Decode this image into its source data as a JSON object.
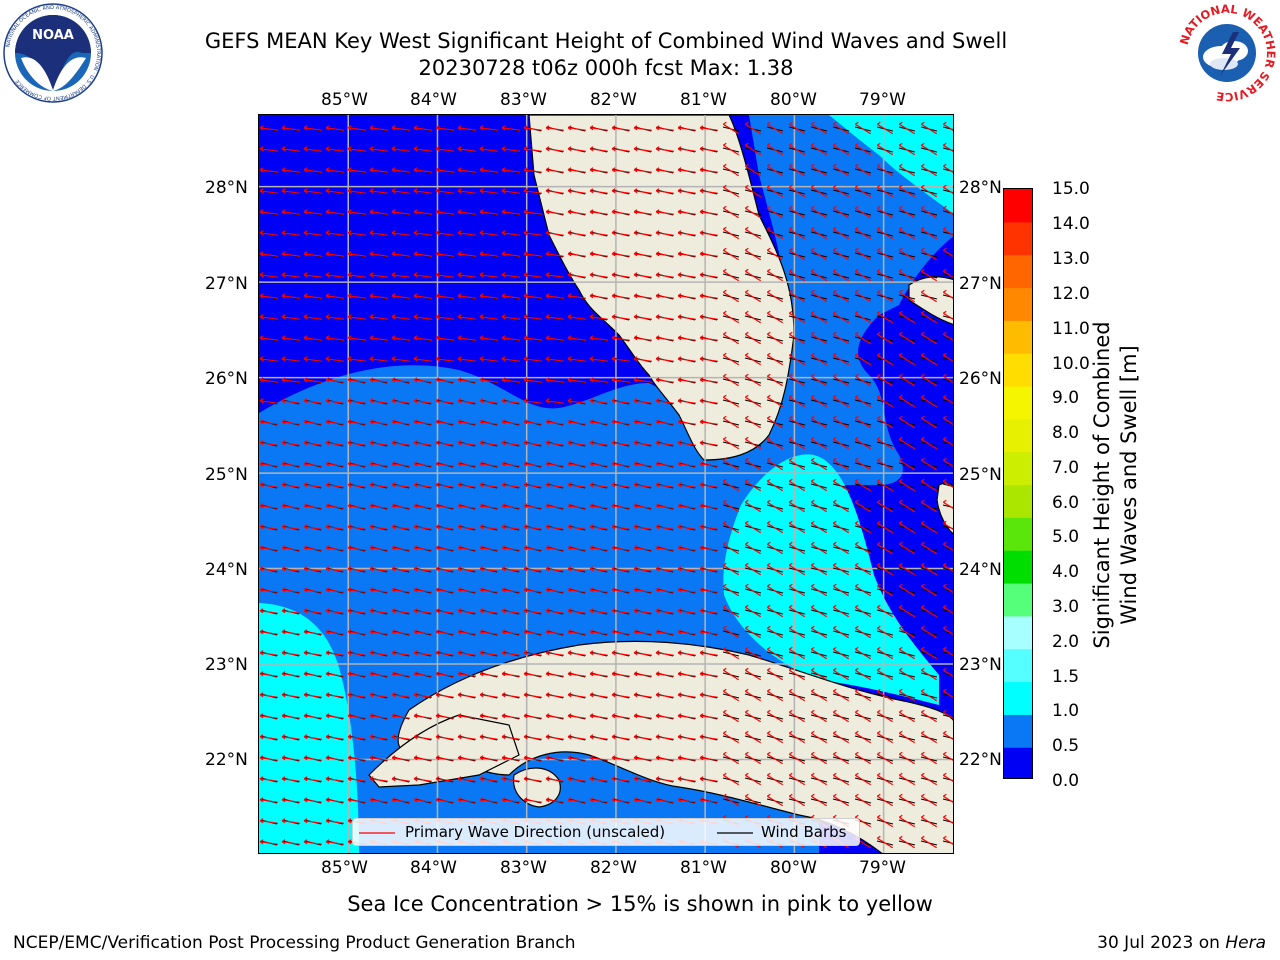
{
  "header": {
    "title_line1": "GEFS MEAN Key West Significant Height of Combined Wind Waves and Swell",
    "title_line2": "20230728 t06z 000h fcst   Max: 1.38"
  },
  "logos": {
    "noaa_text": "NOAA",
    "noaa_ring_text": "NATIONAL OCEANIC AND ATMOSPHERIC ADMINISTRATION · U.S. DEPARTMENT OF COMMERCE",
    "nws_ring_text": "NATIONAL WEATHER SERVICE"
  },
  "map": {
    "lon_labels": [
      "85°W",
      "84°W",
      "83°W",
      "82°W",
      "81°W",
      "80°W",
      "79°W"
    ],
    "lat_labels": [
      "28°N",
      "27°N",
      "26°N",
      "25°N",
      "24°N",
      "23°N",
      "22°N"
    ],
    "lon_range": [
      -86.0,
      -78.2
    ],
    "lat_range": [
      21.0,
      28.75
    ],
    "land_color": "#eeecdc",
    "wave_arrow_color": "#ff0000",
    "wind_barb_color": "#000000"
  },
  "legend": {
    "wave_label": "Primary Wave Direction (unscaled)",
    "barb_label": "Wind Barbs"
  },
  "colorbar": {
    "ticks": [
      "15.0",
      "14.0",
      "13.0",
      "12.0",
      "11.0",
      "10.0",
      "9.0",
      "8.0",
      "7.0",
      "6.0",
      "5.0",
      "4.0",
      "3.0",
      "2.0",
      "1.5",
      "1.0",
      "0.5",
      "0.0"
    ],
    "label_line1": "Significant Height of Combined",
    "label_line2": "Wind Waves and Swell [m]",
    "colors": [
      "#0000f5",
      "#0a78f5",
      "#00ffff",
      "#55ffff",
      "#a8ffff",
      "#55ff7a",
      "#00dd00",
      "#5ae60a",
      "#aae600",
      "#ccee00",
      "#e6f000",
      "#f5f500",
      "#ffdd00",
      "#ffbb00",
      "#ff8800",
      "#ff6600",
      "#ff3300",
      "#ff0000"
    ]
  },
  "caption": "Sea Ice Concentration > 15% is shown in pink to yellow",
  "footer": {
    "left": "NCEP/EMC/Verification Post Processing Product Generation Branch",
    "right_prefix": "30 Jul 2023 on ",
    "right_host": "Hera"
  }
}
